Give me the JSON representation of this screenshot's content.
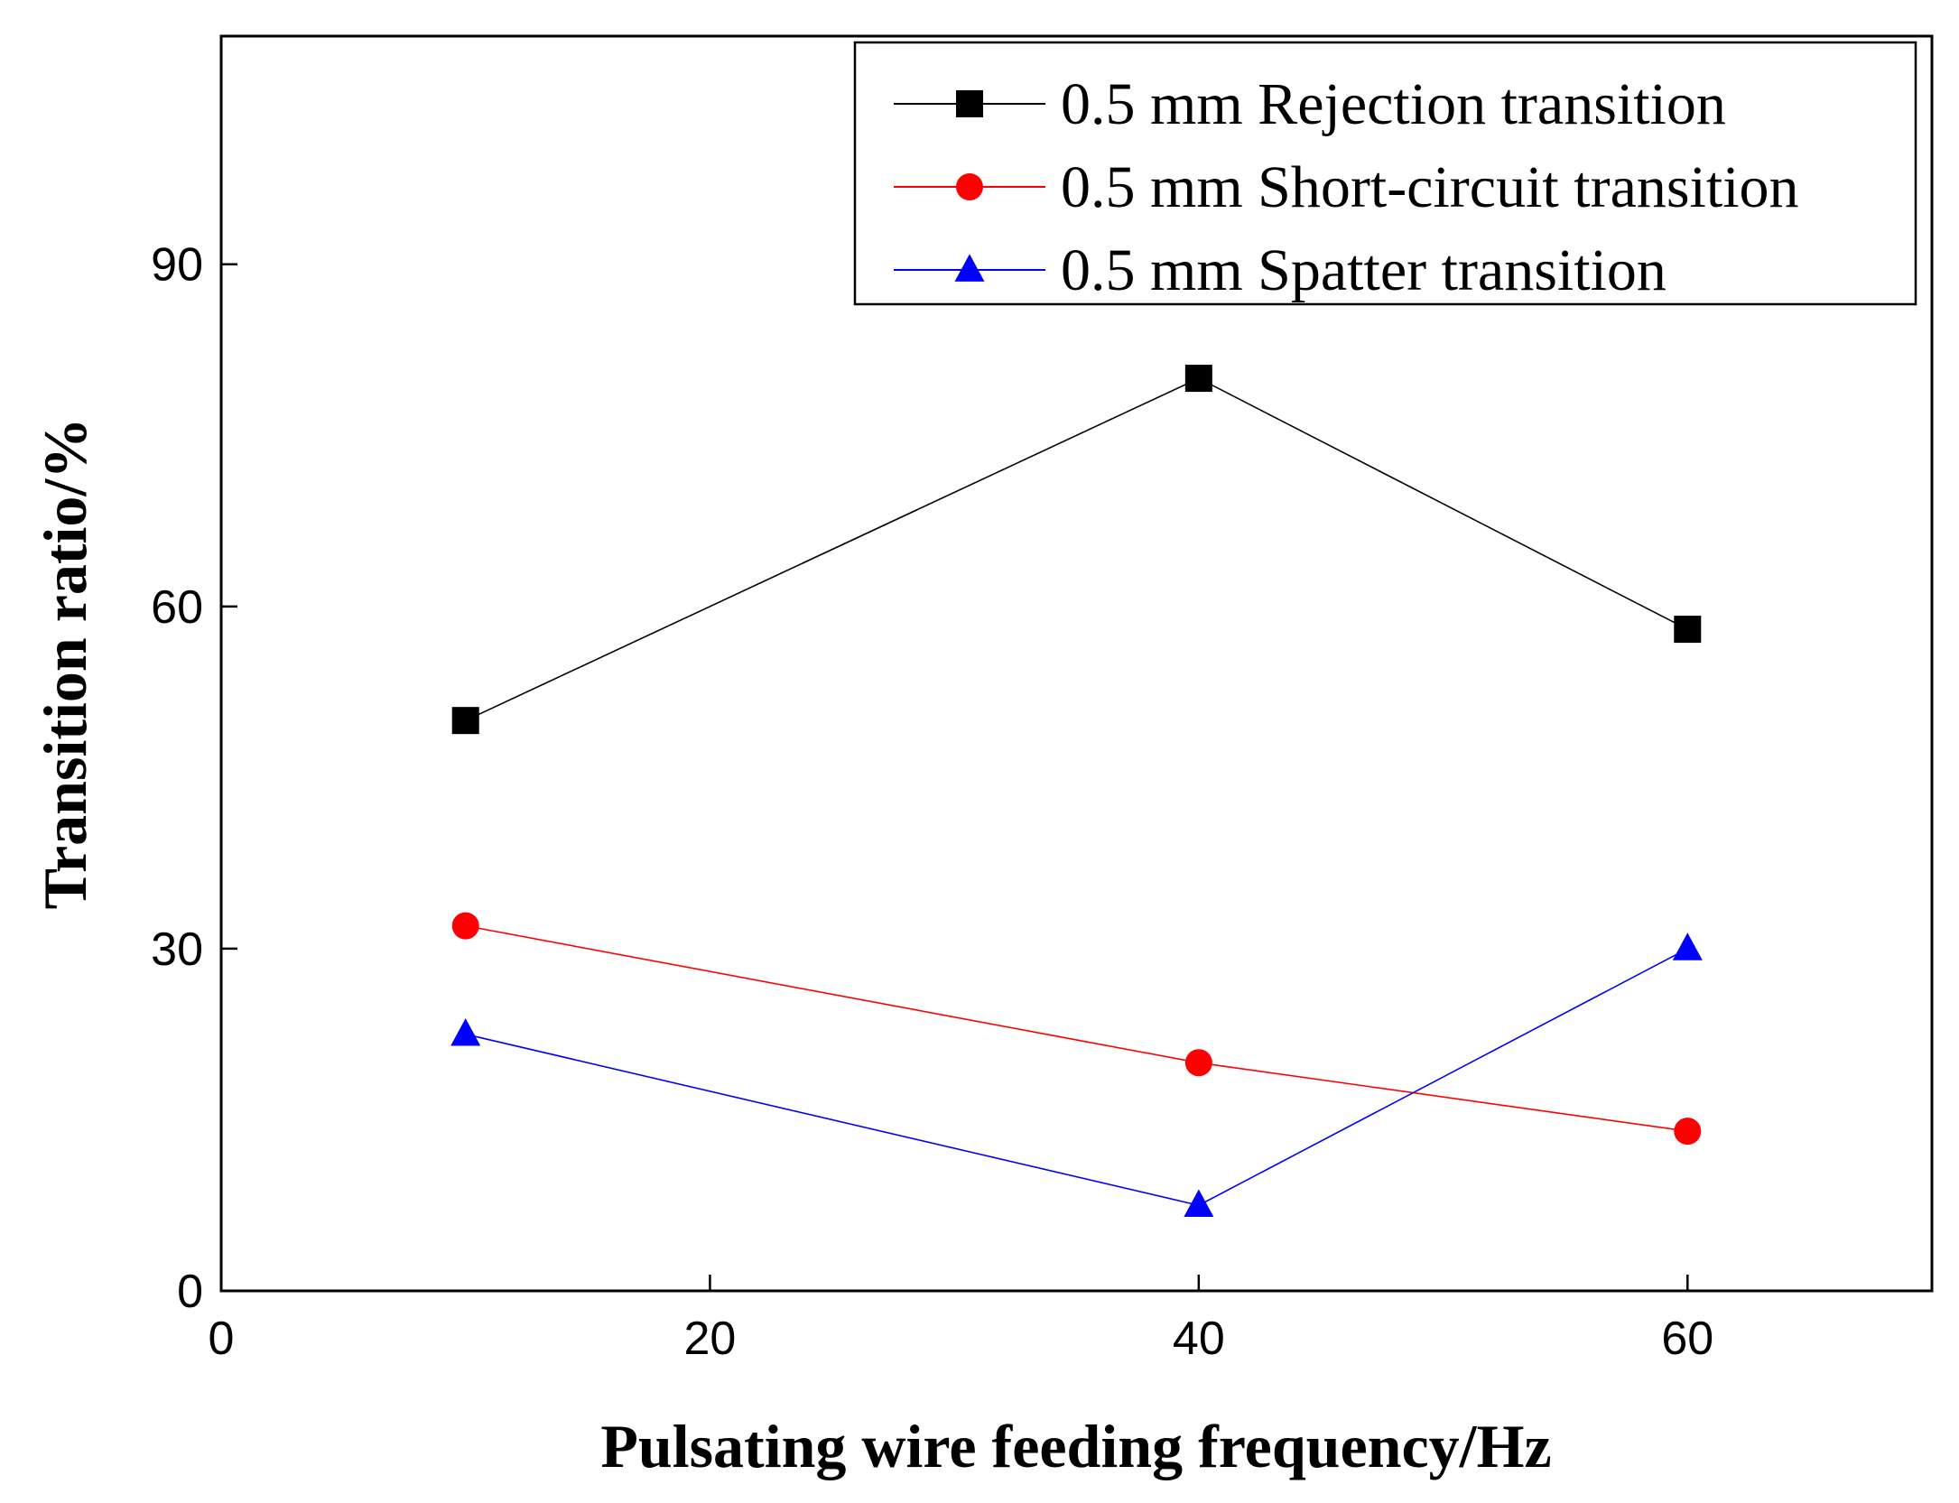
{
  "chart_data": {
    "type": "line",
    "title": "",
    "xlabel": "Pulsating wire feeding frequency/Hz",
    "ylabel": "Transition ratio/%",
    "xlim": [
      0,
      70
    ],
    "ylim": [
      0,
      110
    ],
    "xticks": [
      0,
      20,
      40,
      60
    ],
    "yticks": [
      0,
      30,
      60,
      90
    ],
    "grid": false,
    "legend_position": "top-right",
    "x": [
      10,
      40,
      60
    ],
    "series": [
      {
        "name": "0.5 mm Rejection transition",
        "marker": "square",
        "color": "#000000",
        "values": [
          50,
          80,
          58
        ]
      },
      {
        "name": "0.5 mm Short-circuit transition",
        "marker": "circle",
        "color": "#ff0000",
        "values": [
          32,
          20,
          14
        ]
      },
      {
        "name": "0.5 mm Spatter transition",
        "marker": "triangle",
        "color": "#0000ff",
        "values": [
          22.5,
          7.5,
          30
        ]
      }
    ]
  }
}
